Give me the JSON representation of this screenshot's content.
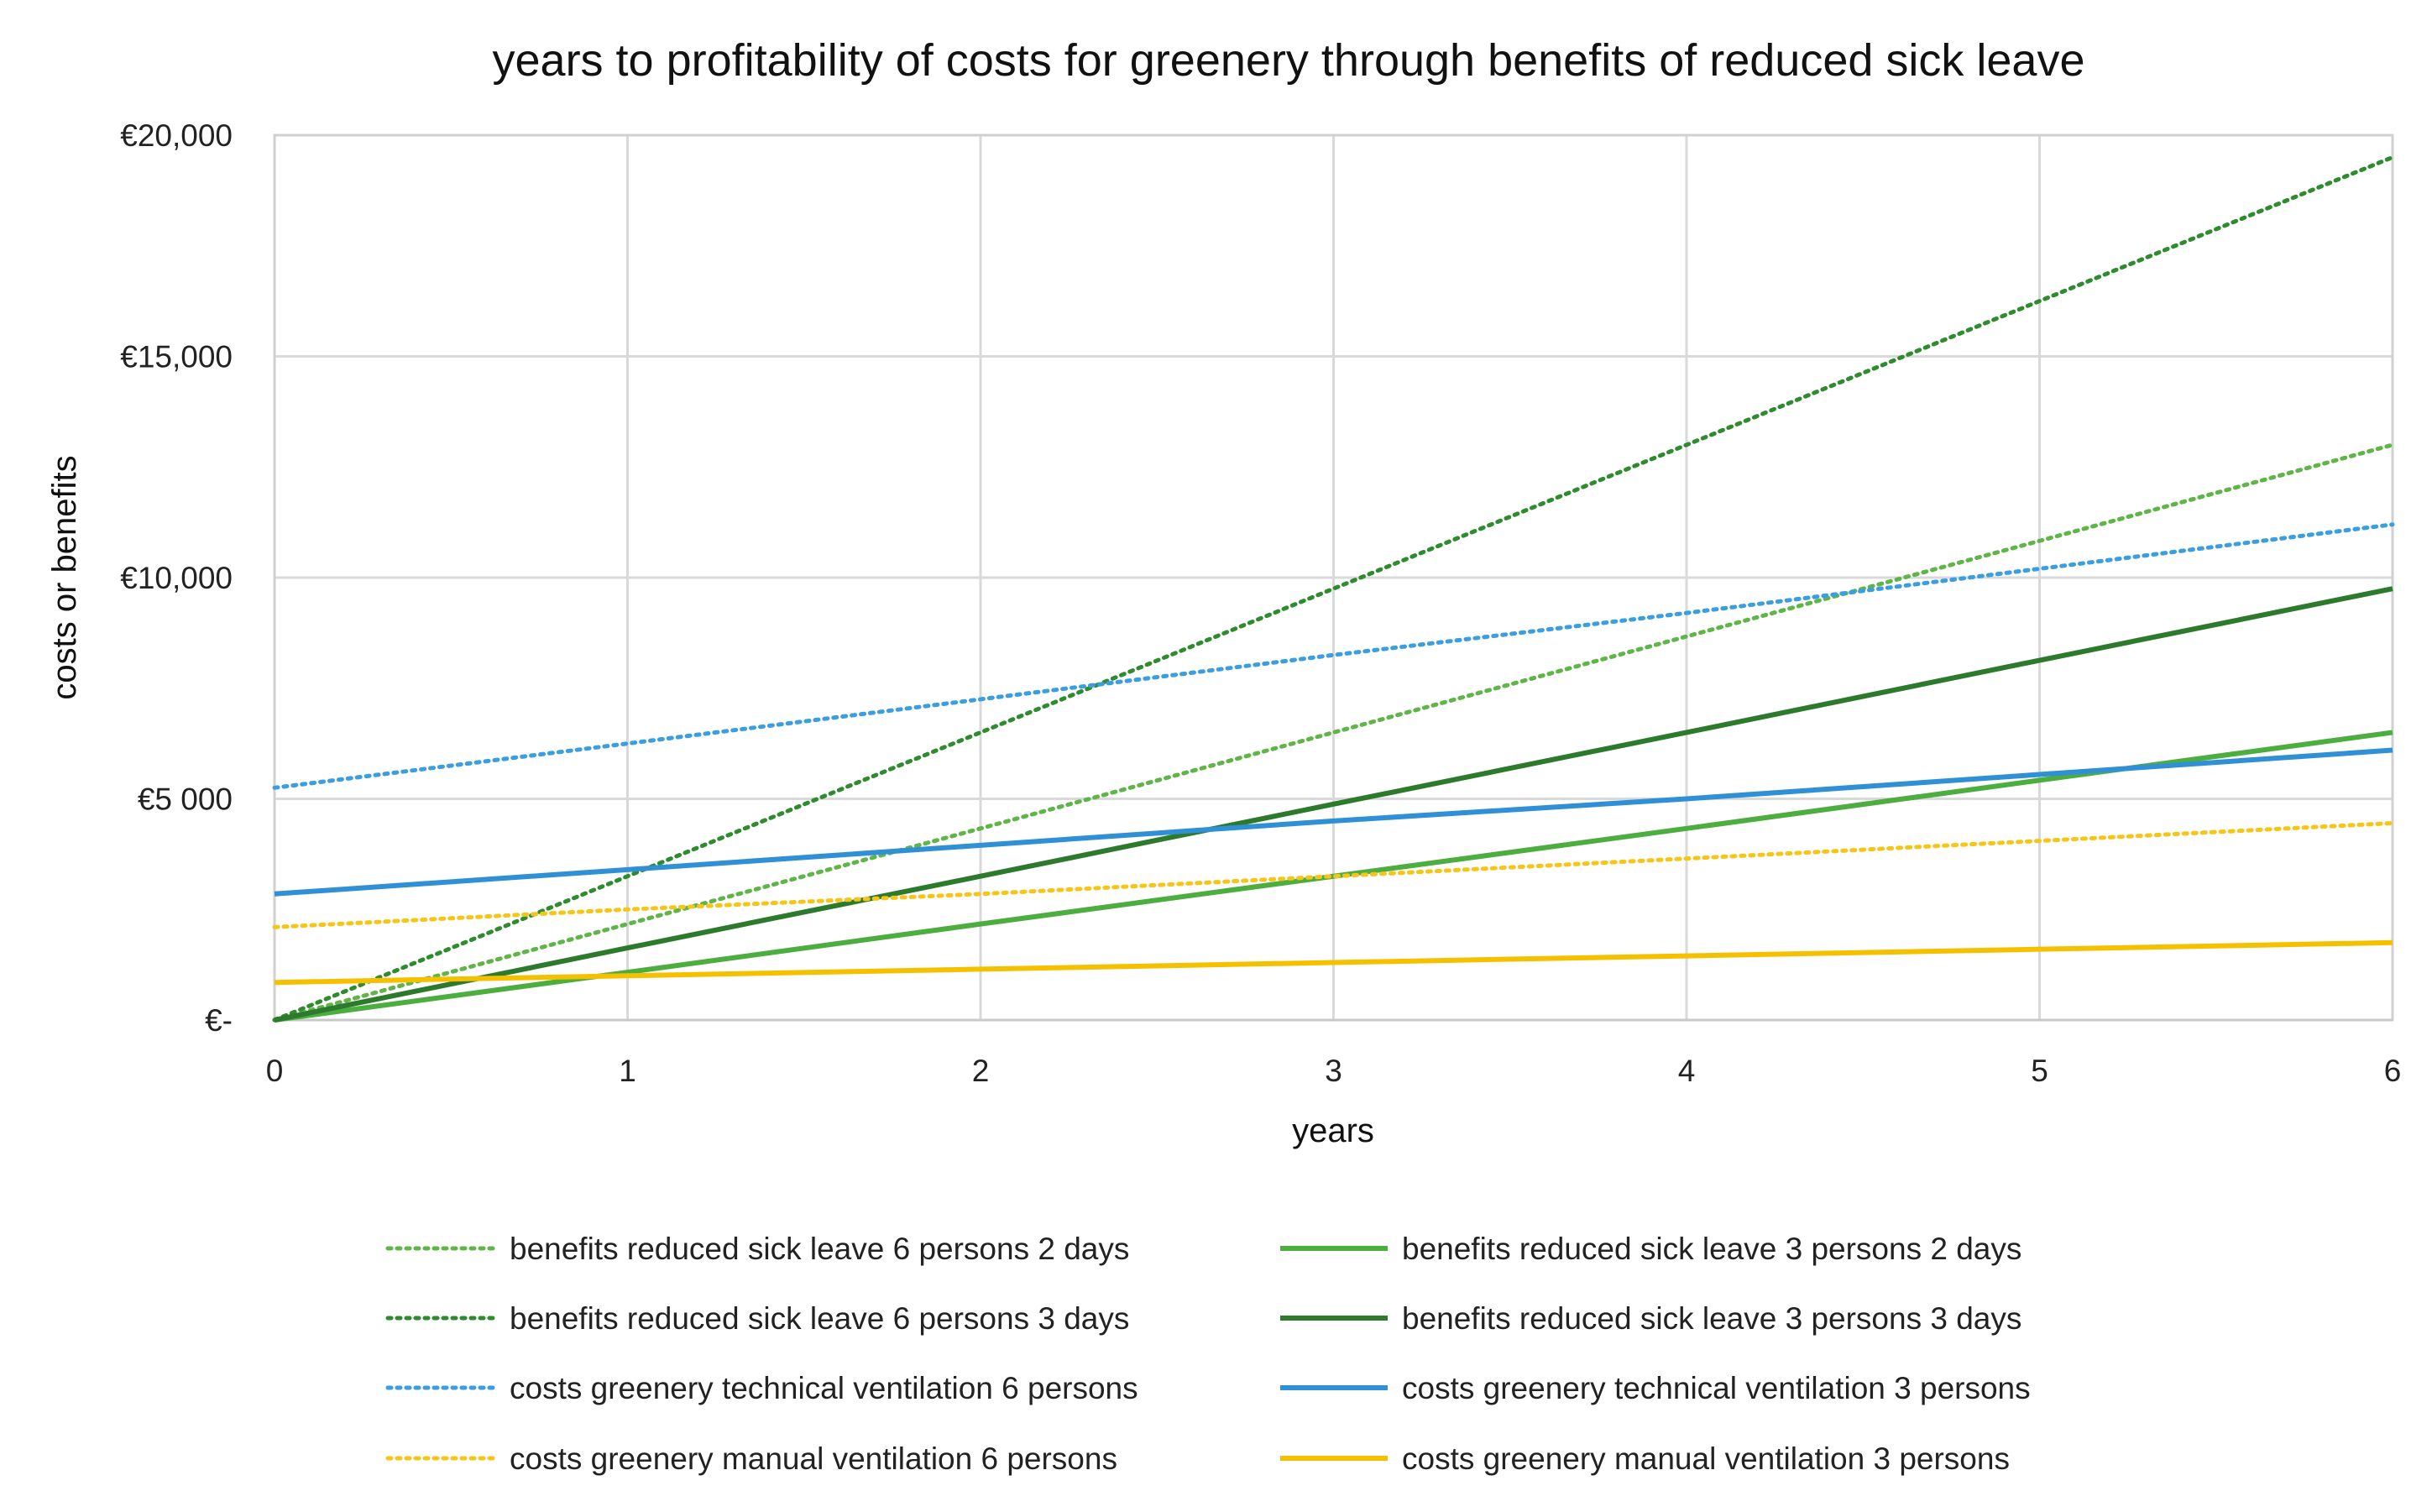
{
  "chart_data": {
    "type": "line",
    "title": "years to profitability of costs for greenery through benefits of reduced sick leave",
    "xlabel": "years",
    "ylabel": "costs or benefits",
    "xlim": [
      0,
      6
    ],
    "ylim": [
      0,
      20000
    ],
    "grid": true,
    "legend_position": "bottom",
    "x_ticks": [
      {
        "value": 0,
        "label": "0"
      },
      {
        "value": 1,
        "label": "1"
      },
      {
        "value": 2,
        "label": "2"
      },
      {
        "value": 3,
        "label": "3"
      },
      {
        "value": 4,
        "label": "4"
      },
      {
        "value": 5,
        "label": "5"
      },
      {
        "value": 6,
        "label": "6"
      }
    ],
    "y_ticks": [
      {
        "value": 0,
        "label": "€-"
      },
      {
        "value": 5000,
        "label": "€5 000"
      },
      {
        "value": 10000,
        "label": "€10,000"
      },
      {
        "value": 15000,
        "label": "€15,000"
      },
      {
        "value": 20000,
        "label": "€20,000"
      }
    ],
    "x": [
      0,
      1,
      2,
      3,
      4,
      5,
      6
    ],
    "series": [
      {
        "name": "benefits reduced sick leave 6 persons 2 days",
        "color": "#5fb548",
        "dashed": true,
        "values": [
          0,
          2170,
          4330,
          6500,
          8670,
          10830,
          13000
        ]
      },
      {
        "name": "benefits reduced sick leave 3 persons 2 days",
        "color": "#4cae3f",
        "dashed": false,
        "values": [
          0,
          1080,
          2170,
          3250,
          4330,
          5420,
          6500
        ]
      },
      {
        "name": "benefits reduced sick leave 6 persons 3 days",
        "color": "#2e8b2e",
        "dashed": true,
        "values": [
          0,
          3250,
          6500,
          9750,
          13000,
          16250,
          19500
        ]
      },
      {
        "name": "benefits reduced sick leave 3 persons 3 days",
        "color": "#2c7a2c",
        "dashed": false,
        "values": [
          0,
          1630,
          3250,
          4880,
          6500,
          8130,
          9750
        ]
      },
      {
        "name": "costs greenery technical ventilation 6 persons",
        "color": "#3a9ee0",
        "dashed": true,
        "values": [
          5250,
          6250,
          7250,
          8250,
          9200,
          10200,
          11200
        ]
      },
      {
        "name": "costs greenery technical ventilation 3 persons",
        "color": "#2f90d6",
        "dashed": false,
        "values": [
          2850,
          3400,
          3950,
          4500,
          5000,
          5550,
          6100
        ]
      },
      {
        "name": "costs greenery manual ventilation 6 persons",
        "color": "#f5c518",
        "dashed": true,
        "values": [
          2100,
          2500,
          2850,
          3250,
          3650,
          4050,
          4450
        ]
      },
      {
        "name": "costs greenery manual ventilation 3 persons",
        "color": "#f5c000",
        "dashed": false,
        "values": [
          850,
          1000,
          1150,
          1300,
          1450,
          1600,
          1750
        ]
      }
    ]
  }
}
